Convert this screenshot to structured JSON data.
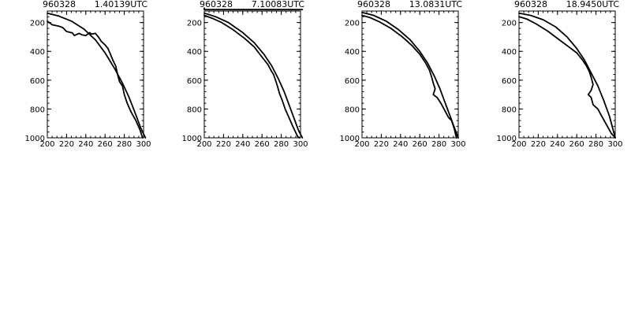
{
  "chart_data": [
    {
      "type": "line",
      "title_date": "960328",
      "title_time": "1.40139UTC",
      "xlim": [
        200,
        300
      ],
      "ylim": [
        1000,
        120
      ],
      "x_ticks": [
        200,
        220,
        240,
        260,
        280,
        300
      ],
      "y_ticks": [
        200,
        400,
        600,
        800,
        1000
      ],
      "series": [
        {
          "points": [
            [
              200,
              135
            ],
            [
              212,
              155
            ],
            [
              225,
              190
            ],
            [
              238,
              245
            ],
            [
              250,
              320
            ],
            [
              260,
              410
            ],
            [
              270,
              520
            ],
            [
              278,
              620
            ],
            [
              285,
              720
            ],
            [
              292,
              840
            ],
            [
              297,
              930
            ],
            [
              302,
              1000
            ]
          ]
        },
        {
          "points": [
            [
              200,
              190
            ],
            [
              205,
              215
            ],
            [
              212,
              225
            ],
            [
              216,
              235
            ],
            [
              220,
              262
            ],
            [
              226,
              272
            ],
            [
              228,
              290
            ],
            [
              233,
              275
            ],
            [
              236,
              285
            ],
            [
              240,
              290
            ],
            [
              244,
              270
            ],
            [
              246,
              280
            ],
            [
              250,
              275
            ],
            [
              253,
              300
            ],
            [
              256,
              330
            ],
            [
              260,
              355
            ],
            [
              263,
              380
            ],
            [
              265,
              410
            ],
            [
              268,
              460
            ],
            [
              271,
              500
            ],
            [
              273,
              560
            ],
            [
              275,
              610
            ],
            [
              278,
              640
            ],
            [
              280,
              700
            ],
            [
              283,
              760
            ],
            [
              287,
              820
            ],
            [
              292,
              880
            ],
            [
              296,
              940
            ],
            [
              299,
              1000
            ]
          ]
        }
      ]
    },
    {
      "type": "line",
      "title_date": "960328",
      "title_time": "7.10083UTC",
      "xlim": [
        200,
        300
      ],
      "ylim": [
        1000,
        120
      ],
      "x_ticks": [
        200,
        220,
        240,
        260,
        280,
        300
      ],
      "y_ticks": [
        200,
        400,
        600,
        800,
        1000
      ],
      "series": [
        {
          "points": [
            [
              200,
              100
            ],
            [
              200,
              110
            ],
            [
              230,
              110
            ],
            [
              260,
              110
            ],
            [
              300,
              110
            ],
            [
              302,
              110
            ]
          ]
        },
        {
          "points": [
            [
              200,
              135
            ],
            [
              212,
              160
            ],
            [
              225,
              200
            ],
            [
              240,
              270
            ],
            [
              252,
              340
            ],
            [
              262,
              420
            ],
            [
              270,
              500
            ],
            [
              277,
              590
            ],
            [
              283,
              680
            ],
            [
              288,
              770
            ],
            [
              293,
              860
            ],
            [
              298,
              950
            ],
            [
              302,
              1000
            ]
          ]
        },
        {
          "points": [
            [
              200,
              150
            ],
            [
              208,
              170
            ],
            [
              218,
              200
            ],
            [
              230,
              250
            ],
            [
              242,
              310
            ],
            [
              252,
              370
            ],
            [
              260,
              440
            ],
            [
              266,
              490
            ],
            [
              270,
              540
            ],
            [
              272,
              560
            ],
            [
              274,
              600
            ],
            [
              276,
              640
            ],
            [
              278,
              690
            ],
            [
              281,
              740
            ],
            [
              284,
              800
            ],
            [
              288,
              860
            ],
            [
              292,
              920
            ],
            [
              297,
              990
            ],
            [
              299,
              1000
            ]
          ]
        }
      ]
    },
    {
      "type": "line",
      "title_date": "960328",
      "title_time": "13.0831UTC",
      "xlim": [
        200,
        300
      ],
      "ylim": [
        1000,
        120
      ],
      "x_ticks": [
        200,
        220,
        240,
        260,
        280,
        300
      ],
      "y_ticks": [
        200,
        400,
        600,
        800,
        1000
      ],
      "series": [
        {
          "points": [
            [
              200,
              130
            ],
            [
              212,
              150
            ],
            [
              225,
              190
            ],
            [
              238,
              250
            ],
            [
              250,
              320
            ],
            [
              260,
              400
            ],
            [
              268,
              480
            ],
            [
              275,
              570
            ],
            [
              281,
              660
            ],
            [
              286,
              750
            ],
            [
              291,
              840
            ],
            [
              296,
              930
            ],
            [
              300,
              1000
            ]
          ]
        },
        {
          "points": [
            [
              200,
              150
            ],
            [
              208,
              165
            ],
            [
              218,
              195
            ],
            [
              230,
              240
            ],
            [
              242,
              300
            ],
            [
              252,
              360
            ],
            [
              260,
              420
            ],
            [
              266,
              480
            ],
            [
              270,
              530
            ],
            [
              272,
              570
            ],
            [
              274,
              620
            ],
            [
              276,
              660
            ],
            [
              274,
              700
            ],
            [
              278,
              720
            ],
            [
              282,
              760
            ],
            [
              286,
              810
            ],
            [
              290,
              860
            ],
            [
              293,
              880
            ],
            [
              296,
              940
            ],
            [
              298,
              1000
            ]
          ]
        }
      ]
    },
    {
      "type": "line",
      "title_date": "960328",
      "title_time": "18.9450UTC",
      "xlim": [
        200,
        300
      ],
      "ylim": [
        1000,
        120
      ],
      "x_ticks": [
        200,
        220,
        240,
        260,
        280,
        300
      ],
      "y_ticks": [
        200,
        400,
        600,
        800,
        1000
      ],
      "series": [
        {
          "points": [
            [
              200,
              135
            ],
            [
              212,
              150
            ],
            [
              225,
              180
            ],
            [
              238,
              230
            ],
            [
              250,
              300
            ],
            [
              260,
              380
            ],
            [
              268,
              460
            ],
            [
              275,
              550
            ],
            [
              282,
              640
            ],
            [
              288,
              740
            ],
            [
              294,
              850
            ],
            [
              298,
              950
            ],
            [
              300,
              1000
            ]
          ]
        },
        {
          "points": [
            [
              200,
              160
            ],
            [
              208,
              175
            ],
            [
              218,
              210
            ],
            [
              230,
              260
            ],
            [
              242,
              320
            ],
            [
              252,
              370
            ],
            [
              260,
              410
            ],
            [
              266,
              460
            ],
            [
              270,
              500
            ],
            [
              273,
              540
            ],
            [
              275,
              580
            ],
            [
              277,
              630
            ],
            [
              275,
              670
            ],
            [
              272,
              700
            ],
            [
              275,
              720
            ],
            [
              277,
              770
            ],
            [
              282,
              800
            ],
            [
              286,
              850
            ],
            [
              291,
              910
            ],
            [
              296,
              970
            ],
            [
              300,
              1000
            ]
          ]
        }
      ]
    }
  ]
}
